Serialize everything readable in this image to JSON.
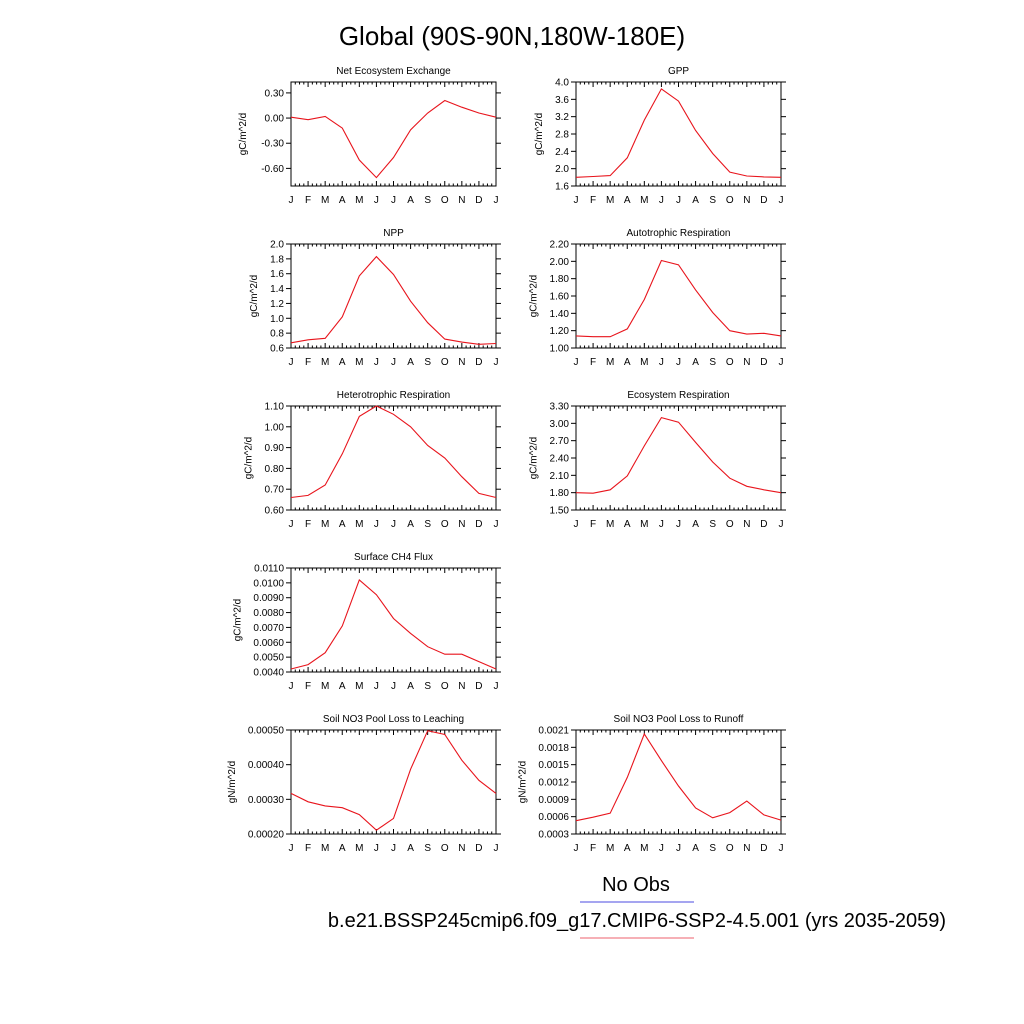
{
  "title": "Global (90S-90N,180W-180E)",
  "colors": {
    "series": "#e8141c",
    "legend_blue": "#6f6fe8",
    "legend_red": "#f0808a"
  },
  "legend": {
    "obs_label": "No Obs",
    "case_label": "b.e21.BSSP245cmip6.f09_g17.CMIP6-SSP2-4.5.001 (yrs 2035-2059)"
  },
  "months": [
    "J",
    "F",
    "M",
    "A",
    "M",
    "J",
    "J",
    "A",
    "S",
    "O",
    "N",
    "D",
    "J"
  ],
  "chart_data": [
    {
      "type": "line",
      "title": "Net Ecosystem Exchange",
      "ylabel": "gC/m^2/d",
      "ylim": [
        -0.81,
        0.43
      ],
      "yticks": [
        -0.6,
        -0.3,
        0.0,
        0.3
      ],
      "ytick_labels": [
        "-0.60",
        "-0.30",
        "0.00",
        "0.30"
      ],
      "values": [
        0.01,
        -0.02,
        0.02,
        -0.12,
        -0.5,
        -0.71,
        -0.47,
        -0.14,
        0.06,
        0.21,
        0.13,
        0.06,
        0.01
      ]
    },
    {
      "type": "line",
      "title": "GPP",
      "ylabel": "gC/m^2/d",
      "ylim": [
        1.6,
        4.0
      ],
      "yticks": [
        1.6,
        2.0,
        2.4,
        2.8,
        3.2,
        3.6,
        4.0
      ],
      "ytick_labels": [
        "1.6",
        "2.0",
        "2.4",
        "2.8",
        "3.2",
        "3.6",
        "4.0"
      ],
      "values": [
        1.8,
        1.82,
        1.84,
        2.25,
        3.12,
        3.84,
        3.56,
        2.88,
        2.35,
        1.92,
        1.83,
        1.81,
        1.8
      ]
    },
    {
      "type": "line",
      "title": "NPP",
      "ylabel": "gC/m^2/d",
      "ylim": [
        0.6,
        2.0
      ],
      "yticks": [
        0.6,
        0.8,
        1.0,
        1.2,
        1.4,
        1.6,
        1.8,
        2.0
      ],
      "ytick_labels": [
        "0.6",
        "0.8",
        "1.0",
        "1.2",
        "1.4",
        "1.6",
        "1.8",
        "2.0"
      ],
      "values": [
        0.67,
        0.71,
        0.73,
        1.02,
        1.57,
        1.83,
        1.59,
        1.23,
        0.94,
        0.72,
        0.68,
        0.65,
        0.66
      ]
    },
    {
      "type": "line",
      "title": "Autotrophic Respiration",
      "ylabel": "gC/m^2/d",
      "ylim": [
        1.0,
        2.2
      ],
      "yticks": [
        1.0,
        1.2,
        1.4,
        1.6,
        1.8,
        2.0,
        2.2
      ],
      "ytick_labels": [
        "1.00",
        "1.20",
        "1.40",
        "1.60",
        "1.80",
        "2.00",
        "2.20"
      ],
      "values": [
        1.14,
        1.13,
        1.13,
        1.22,
        1.56,
        2.01,
        1.96,
        1.67,
        1.41,
        1.2,
        1.16,
        1.17,
        1.14
      ]
    },
    {
      "type": "line",
      "title": "Heterotrophic Respiration",
      "ylabel": "gC/m^2/d",
      "ylim": [
        0.6,
        1.1
      ],
      "yticks": [
        0.6,
        0.7,
        0.8,
        0.9,
        1.0,
        1.1
      ],
      "ytick_labels": [
        "0.60",
        "0.70",
        "0.80",
        "0.90",
        "1.00",
        "1.10"
      ],
      "values": [
        0.66,
        0.67,
        0.72,
        0.87,
        1.05,
        1.1,
        1.06,
        1.0,
        0.91,
        0.85,
        0.76,
        0.68,
        0.66
      ]
    },
    {
      "type": "line",
      "title": "Ecosystem Respiration",
      "ylabel": "gC/m^2/d",
      "ylim": [
        1.5,
        3.3
      ],
      "yticks": [
        1.5,
        1.8,
        2.1,
        2.4,
        2.7,
        3.0,
        3.3
      ],
      "ytick_labels": [
        "1.50",
        "1.80",
        "2.10",
        "2.40",
        "2.70",
        "3.00",
        "3.30"
      ],
      "values": [
        1.8,
        1.79,
        1.85,
        2.09,
        2.61,
        3.1,
        3.02,
        2.67,
        2.33,
        2.05,
        1.91,
        1.85,
        1.8
      ]
    },
    {
      "type": "line",
      "title": "Surface CH4 Flux",
      "ylabel": "gC/m^2/d",
      "ylim": [
        0.004,
        0.011
      ],
      "yticks": [
        0.004,
        0.005,
        0.006,
        0.007,
        0.008,
        0.009,
        0.01,
        0.011
      ],
      "ytick_labels": [
        "0.0040",
        "0.0050",
        "0.0060",
        "0.0070",
        "0.0080",
        "0.0090",
        "0.0100",
        "0.0110"
      ],
      "values": [
        0.0042,
        0.0045,
        0.0053,
        0.0071,
        0.0102,
        0.0092,
        0.0076,
        0.0066,
        0.0057,
        0.0052,
        0.0052,
        0.0047,
        0.0042
      ]
    },
    null,
    {
      "type": "line",
      "title": "Soil NO3 Pool Loss to Leaching",
      "ylabel": "gN/m^2/d",
      "ylim": [
        0.0002,
        0.0005
      ],
      "yticks": [
        0.0002,
        0.0003,
        0.0004,
        0.0005
      ],
      "ytick_labels": [
        "0.00020",
        "0.00030",
        "0.00040",
        "0.00050"
      ],
      "values": [
        0.000317,
        0.000293,
        0.000281,
        0.000276,
        0.000256,
        0.000211,
        0.000245,
        0.000387,
        0.000498,
        0.000487,
        0.000413,
        0.000355,
        0.000317
      ]
    },
    {
      "type": "line",
      "title": "Soil NO3 Pool Loss to Runoff",
      "ylabel": "gN/m^2/d",
      "ylim": [
        0.0003,
        0.0021
      ],
      "yticks": [
        0.0003,
        0.0006,
        0.0009,
        0.0012,
        0.0015,
        0.0018,
        0.0021
      ],
      "ytick_labels": [
        "0.0003",
        "0.0006",
        "0.0009",
        "0.0012",
        "0.0015",
        "0.0018",
        "0.0021"
      ],
      "values": [
        0.00053,
        0.00059,
        0.00066,
        0.00128,
        0.00203,
        0.00157,
        0.00113,
        0.00075,
        0.00058,
        0.00067,
        0.00087,
        0.00063,
        0.00054
      ]
    }
  ]
}
